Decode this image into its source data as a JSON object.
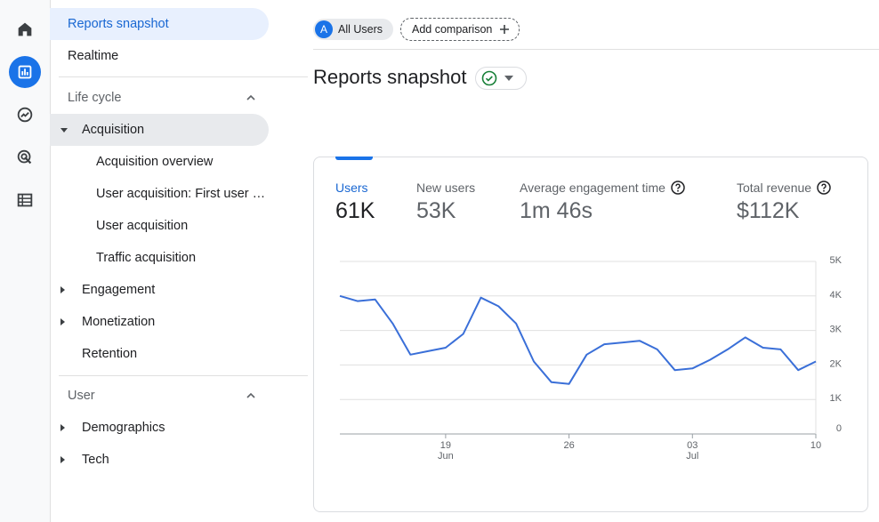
{
  "rail": {
    "items": [
      {
        "name": "home-icon",
        "active": false
      },
      {
        "name": "reports-icon",
        "active": true
      },
      {
        "name": "explore-icon",
        "active": false
      },
      {
        "name": "advertising-icon",
        "active": false
      },
      {
        "name": "configure-icon",
        "active": false
      }
    ]
  },
  "nav": {
    "reports_snapshot": "Reports snapshot",
    "realtime": "Realtime",
    "lifecycle_header": "Life cycle",
    "acquisition": "Acquisition",
    "acquisition_children": [
      "Acquisition overview",
      "User acquisition: First user …",
      "User acquisition",
      "Traffic acquisition"
    ],
    "engagement": "Engagement",
    "monetization": "Monetization",
    "retention": "Retention",
    "user_header": "User",
    "demographics": "Demographics",
    "tech": "Tech"
  },
  "topbar": {
    "avatar_letter": "A",
    "all_users": "All Users",
    "add_comparison": "Add comparison"
  },
  "page_title": "Reports snapshot",
  "metrics": [
    {
      "label": "Users",
      "value": "61K",
      "active": true,
      "help": false
    },
    {
      "label": "New users",
      "value": "53K",
      "active": false,
      "help": false
    },
    {
      "label": "Average engagement time",
      "value": "1m 46s",
      "active": false,
      "help": true
    },
    {
      "label": "Total revenue",
      "value": "$112K",
      "active": false,
      "help": true
    }
  ],
  "colors": {
    "accent": "#1a73e8",
    "line": "#3a6fd8"
  },
  "chart_data": {
    "type": "line",
    "yticks": [
      "5K",
      "4K",
      "3K",
      "2K",
      "1K",
      "0"
    ],
    "ylim": [
      0,
      5000
    ],
    "xticks": [
      {
        "day": "19",
        "month": "Jun",
        "index": 6
      },
      {
        "day": "26",
        "month": "",
        "index": 13
      },
      {
        "day": "03",
        "month": "Jul",
        "index": 20
      },
      {
        "day": "10",
        "month": "",
        "index": 27
      }
    ],
    "series": [
      {
        "values": [
          4000,
          3850,
          3900,
          3200,
          2300,
          2400,
          2500,
          2900,
          3950,
          3700,
          3200,
          2100,
          1500,
          1450,
          2300,
          2600,
          2650,
          2700,
          2450,
          1850,
          1900,
          2150,
          2450,
          2800,
          2500,
          2450,
          1850,
          2100
        ]
      }
    ]
  }
}
